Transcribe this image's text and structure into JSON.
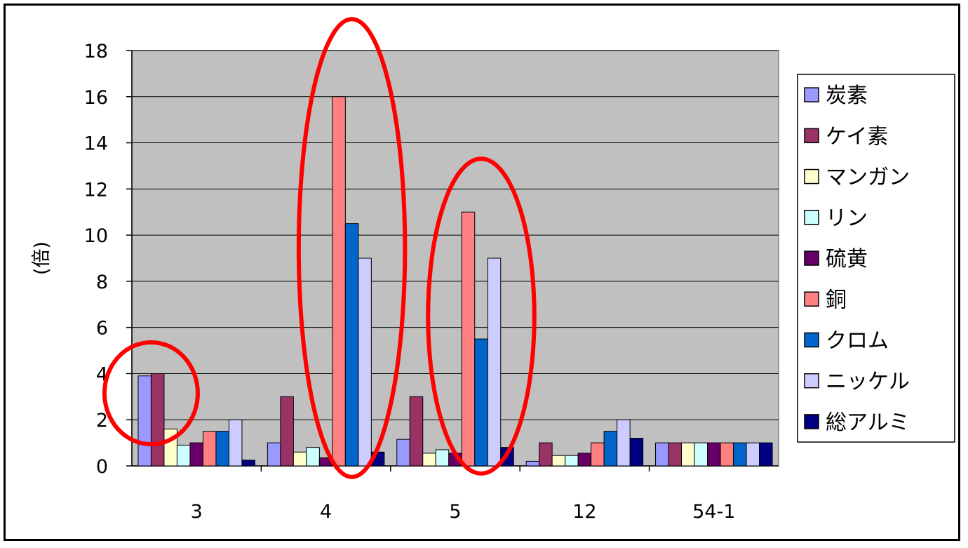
{
  "chart_data": {
    "type": "bar",
    "ylabel": "(倍)",
    "ylim": [
      0,
      18
    ],
    "y_ticks": [
      0,
      2,
      4,
      6,
      8,
      10,
      12,
      14,
      16,
      18
    ],
    "grid": true,
    "legend_position": "right",
    "categories": [
      "3",
      "4",
      "5",
      "12",
      "54-1"
    ],
    "series": [
      {
        "name": "炭素",
        "color": "#9999ff",
        "values": [
          3.9,
          1.0,
          1.15,
          0.2,
          1.0
        ]
      },
      {
        "name": "ケイ素",
        "color": "#993366",
        "values": [
          4.0,
          3.0,
          3.0,
          1.0,
          1.0
        ]
      },
      {
        "name": "マンガン",
        "color": "#ffffcc",
        "values": [
          1.6,
          0.6,
          0.55,
          0.45,
          1.0
        ]
      },
      {
        "name": "リン",
        "color": "#ccffff",
        "values": [
          0.9,
          0.8,
          0.7,
          0.45,
          1.0
        ]
      },
      {
        "name": "硫黄",
        "color": "#660066",
        "values": [
          1.0,
          0.35,
          0.55,
          0.55,
          1.0
        ]
      },
      {
        "name": "銅",
        "color": "#ff8080",
        "values": [
          1.5,
          16.0,
          11.0,
          1.0,
          1.0
        ]
      },
      {
        "name": "クロム",
        "color": "#0066cc",
        "values": [
          1.5,
          10.5,
          5.5,
          1.5,
          1.0
        ]
      },
      {
        "name": "ニッケル",
        "color": "#ccccff",
        "values": [
          2.0,
          9.0,
          9.0,
          2.0,
          1.0
        ]
      },
      {
        "name": "総アルミ",
        "color": "#000080",
        "values": [
          0.25,
          0.6,
          0.8,
          1.2,
          1.0
        ]
      }
    ],
    "annotations": [
      {
        "type": "ellipse-highlight",
        "color": "#ff0000",
        "category": "3",
        "series": [
          "炭素",
          "ケイ素"
        ]
      },
      {
        "type": "ellipse-highlight",
        "color": "#ff0000",
        "category": "4",
        "series": [
          "銅",
          "クロム",
          "ニッケル"
        ]
      },
      {
        "type": "ellipse-highlight",
        "color": "#ff0000",
        "category": "5",
        "series": [
          "銅",
          "クロム",
          "ニッケル"
        ]
      }
    ],
    "plot_background": "#c0c0c0"
  }
}
